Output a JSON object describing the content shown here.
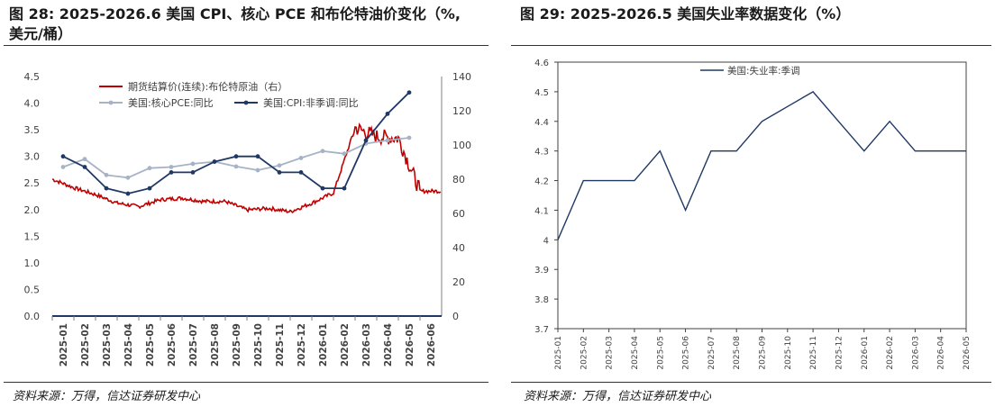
{
  "left": {
    "title_line1": "图 28:  2025-2026.6 美国 CPI、核心 PCE 和布伦特油价变化（%,",
    "title_line2": "美元/桶）",
    "source": "资料来源：万得，信达证券研发中心",
    "chart_data": {
      "type": "line",
      "title": "",
      "categories": [
        "2025-01",
        "2025-02",
        "2025-03",
        "2025-04",
        "2025-05",
        "2025-06",
        "2025-07",
        "2025-08",
        "2025-09",
        "2025-10",
        "2025-11",
        "2025-12",
        "2026-01",
        "2026-02",
        "2026-03",
        "2026-04",
        "2026-05",
        "2026-06"
      ],
      "y_left": {
        "min": 0.0,
        "max": 4.5,
        "ticks": [
          "0.0",
          "0.5",
          "1.0",
          "1.5",
          "2.0",
          "2.5",
          "3.0",
          "3.5",
          "4.0",
          "4.5"
        ]
      },
      "y_right": {
        "min": 0,
        "max": 140,
        "ticks": [
          "0",
          "20",
          "40",
          "60",
          "80",
          "100",
          "120",
          "140"
        ]
      },
      "legend_position": "top-center",
      "grid": false,
      "series": [
        {
          "name": "期货结算价(连续):布伦特原油（右）",
          "axis": "right",
          "color": "#c00000",
          "values_monthly_approx": [
            80,
            75,
            71,
            66,
            64,
            68,
            69,
            67,
            67,
            62,
            63,
            61,
            66,
            72,
            110,
            105,
            104,
            73
          ]
        },
        {
          "name": "美国:核心PCE:同比",
          "axis": "left",
          "color": "#a6b3c6",
          "values": [
            2.8,
            2.95,
            2.65,
            2.6,
            2.78,
            2.8,
            2.86,
            2.9,
            2.81,
            2.74,
            2.83,
            2.97,
            3.1,
            3.05,
            3.24,
            3.3,
            3.35,
            null
          ]
        },
        {
          "name": "美国:CPI:非季调:同比",
          "axis": "left",
          "color": "#1f3864",
          "values": [
            3.0,
            2.8,
            2.4,
            2.3,
            2.4,
            2.7,
            2.7,
            2.9,
            3.0,
            3.0,
            2.7,
            2.7,
            2.4,
            2.4,
            3.3,
            3.8,
            4.2,
            null
          ]
        }
      ]
    }
  },
  "right": {
    "title": "图 29:  2025-2026.5 美国失业率数据变化（%）",
    "source": "资料来源：万得，信达证券研发中心",
    "chart_data": {
      "type": "line",
      "title": "",
      "categories": [
        "2025-01",
        "2025-02",
        "2025-03",
        "2025-04",
        "2025-05",
        "2025-06",
        "2025-07",
        "2025-08",
        "2025-09",
        "2025-10",
        "2025-11",
        "2025-12",
        "2026-01",
        "2026-02",
        "2026-03",
        "2026-04",
        "2026-05"
      ],
      "y": {
        "min": 3.7,
        "max": 4.6,
        "ticks": [
          "3.7",
          "3.8",
          "3.9",
          "4",
          "4.1",
          "4.2",
          "4.3",
          "4.4",
          "4.5",
          "4.6"
        ]
      },
      "legend_position": "top-center",
      "grid": false,
      "series": [
        {
          "name": "美国:失业率:季调",
          "color": "#1f3864",
          "values": [
            4.0,
            4.2,
            4.2,
            4.2,
            4.3,
            4.1,
            4.3,
            4.3,
            4.4,
            4.45,
            4.5,
            4.4,
            4.3,
            4.4,
            4.3,
            4.3,
            4.3
          ]
        }
      ]
    }
  }
}
